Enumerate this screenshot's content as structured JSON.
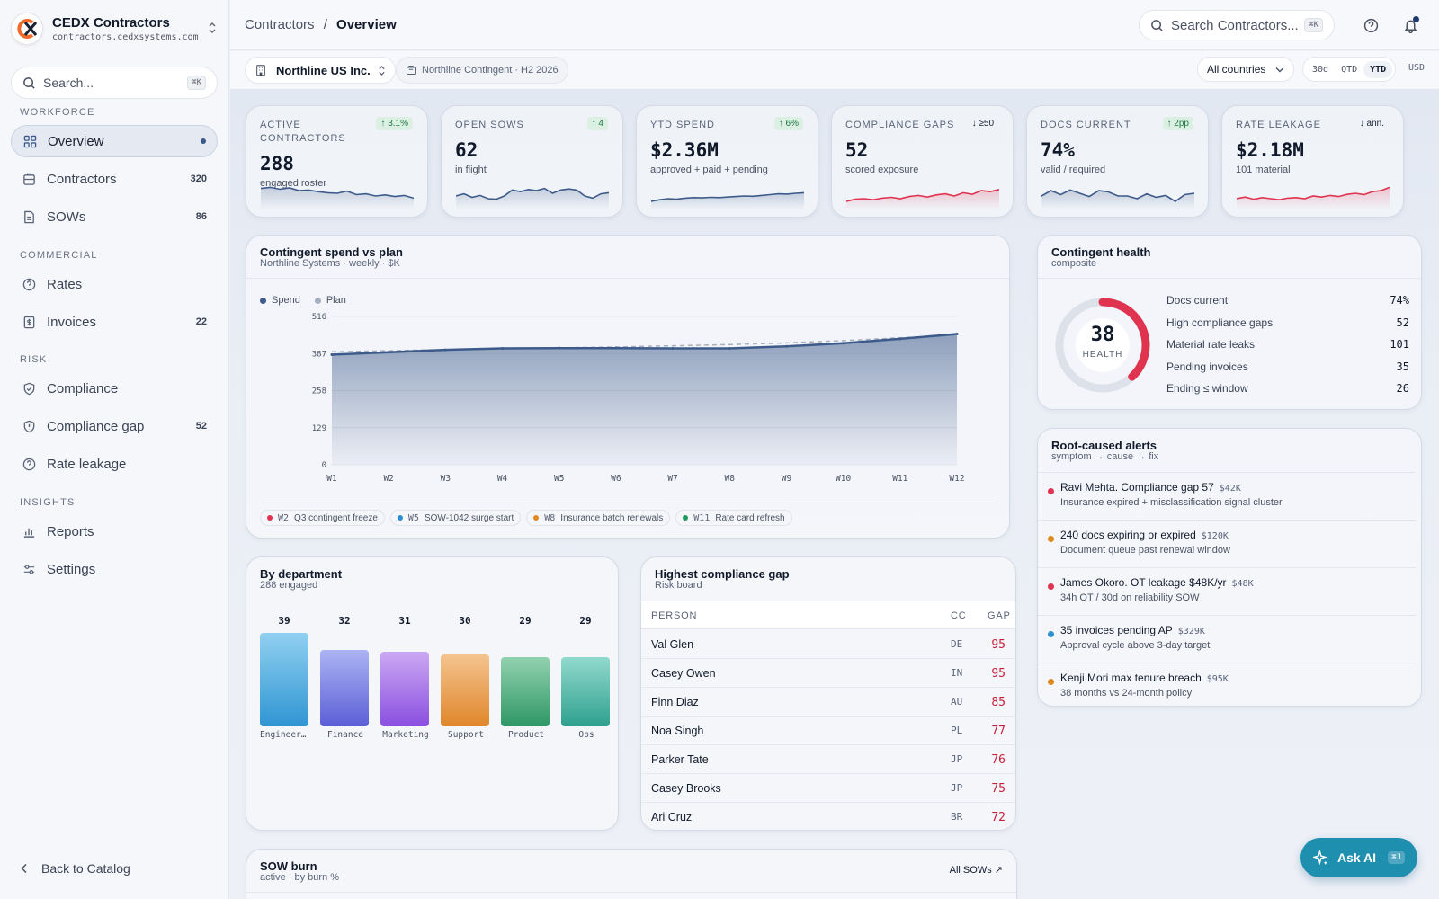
{
  "brand": {
    "name": "CEDX Contractors",
    "url": "contractors.cedxsystems.com"
  },
  "sidebar": {
    "search_placeholder": "Search...",
    "search_kbd": "⌘K",
    "sections": {
      "workforce": "WORKFORCE",
      "commercial": "COMMERCIAL",
      "risk": "RISK",
      "insights": "INSIGHTS"
    },
    "items": [
      {
        "label": "Overview",
        "count": "",
        "icon": "grid-icon"
      },
      {
        "label": "Contractors",
        "count": "320",
        "icon": "building-icon"
      },
      {
        "label": "SOWs",
        "count": "86",
        "icon": "document-icon"
      },
      {
        "label": "Rates",
        "count": "",
        "icon": "help-circle-icon"
      },
      {
        "label": "Invoices",
        "count": "22",
        "icon": "dollar-doc-icon"
      },
      {
        "label": "Compliance",
        "count": "",
        "icon": "shield-check-icon"
      },
      {
        "label": "Compliance gap",
        "count": "52",
        "icon": "shield-alert-icon"
      },
      {
        "label": "Rate leakage",
        "count": "",
        "icon": "help-circle-icon"
      },
      {
        "label": "Reports",
        "count": "",
        "icon": "bar-chart-icon"
      },
      {
        "label": "Settings",
        "count": "",
        "icon": "sliders-icon"
      }
    ],
    "back_label": "Back to Catalog"
  },
  "header": {
    "breadcrumb_root": "Contractors",
    "breadcrumb_sep": "/",
    "breadcrumb_current": "Overview",
    "search_placeholder": "Search Contractors...",
    "search_kbd": "⌘K"
  },
  "filters": {
    "org": "Northline US Inc.",
    "scope": "Northline Contingent · H2 2026",
    "country": "All countries",
    "periods": [
      "30d",
      "QTD",
      "YTD"
    ],
    "active_period": "YTD",
    "currency": "USD"
  },
  "kpis": [
    {
      "label": "ACTIVE CONTRACTORS",
      "delta": "↑ 3.1%",
      "direction": "up",
      "value": "288",
      "sub": "engaged roster",
      "spark": [
        0.78,
        0.82,
        0.75,
        0.8,
        0.7,
        0.72,
        0.66,
        0.62,
        0.6,
        0.68,
        0.55,
        0.58,
        0.5,
        0.54,
        0.48,
        0.52,
        0.42
      ],
      "color": "#3c5a8a"
    },
    {
      "label": "OPEN SOWS",
      "delta": "↑ 4",
      "direction": "up",
      "value": "62",
      "sub": "in flight",
      "spark": [
        0.5,
        0.58,
        0.45,
        0.52,
        0.4,
        0.38,
        0.5,
        0.72,
        0.66,
        0.74,
        0.7,
        0.78,
        0.6,
        0.72,
        0.76,
        0.72,
        0.5,
        0.42,
        0.58,
        0.62
      ],
      "color": "#3c5a8a"
    },
    {
      "label": "YTD SPEND",
      "delta": "↑ 6%",
      "direction": "up",
      "value": "$2.36M",
      "sub": "approved + paid + pending",
      "spark": [
        0.3,
        0.36,
        0.4,
        0.38,
        0.42,
        0.44,
        0.43,
        0.45,
        0.44,
        0.46,
        0.48,
        0.5,
        0.49,
        0.52,
        0.55,
        0.58,
        0.57,
        0.6,
        0.62
      ],
      "color": "#3c5a8a"
    },
    {
      "label": "COMPLIANCE GAPS",
      "delta": "↓ ≥50",
      "direction": "down",
      "value": "52",
      "sub": "scored exposure",
      "spark": [
        0.3,
        0.38,
        0.4,
        0.36,
        0.42,
        0.45,
        0.4,
        0.48,
        0.52,
        0.46,
        0.54,
        0.58,
        0.5,
        0.62,
        0.56,
        0.7,
        0.66,
        0.74
      ],
      "color": "#e0334f"
    },
    {
      "label": "DOCS CURRENT",
      "delta": "↑ 2pp",
      "direction": "up",
      "value": "74%",
      "sub": "valid / required",
      "spark": [
        0.5,
        0.7,
        0.55,
        0.72,
        0.6,
        0.48,
        0.7,
        0.65,
        0.5,
        0.5,
        0.4,
        0.58,
        0.45,
        0.52,
        0.3,
        0.55,
        0.6
      ],
      "color": "#3c5a8a"
    },
    {
      "label": "RATE LEAKAGE",
      "delta": "↓ ann.",
      "direction": "down",
      "value": "$2.18M",
      "sub": "101 material",
      "spark": [
        0.4,
        0.46,
        0.38,
        0.44,
        0.4,
        0.36,
        0.42,
        0.44,
        0.4,
        0.5,
        0.46,
        0.52,
        0.48,
        0.56,
        0.6,
        0.55,
        0.66,
        0.7,
        0.82
      ],
      "color": "#e0334f"
    }
  ],
  "spend_chart": {
    "title": "Contingent spend vs plan",
    "subtitle": "Northline Systems · weekly · $K",
    "legend": [
      {
        "name": "Spend",
        "color": "#3c5a8a"
      },
      {
        "name": "Plan",
        "color": "#a6afbd"
      }
    ],
    "annotations": [
      {
        "week": "W2",
        "text": "Q3 contingent freeze",
        "color": "#e0334f"
      },
      {
        "week": "W5",
        "text": "SOW-1042 surge start",
        "color": "#2b8fd0"
      },
      {
        "week": "W8",
        "text": "Insurance batch renewals",
        "color": "#e08a1e"
      },
      {
        "week": "W11",
        "text": "Rate card refresh",
        "color": "#1f9a5a"
      }
    ]
  },
  "chart_data": {
    "type": "area",
    "x": [
      "W1",
      "W2",
      "W3",
      "W4",
      "W5",
      "W6",
      "W7",
      "W8",
      "W9",
      "W10",
      "W11",
      "W12"
    ],
    "series": [
      {
        "name": "Spend",
        "values": [
          383,
          392,
          400,
          405,
          406,
          406,
          405,
          405,
          412,
          423,
          438,
          455
        ]
      },
      {
        "name": "Plan",
        "values": [
          393,
          397,
          401,
          404,
          407,
          410,
          414,
          418,
          424,
          432,
          442,
          452
        ]
      }
    ],
    "yticks": [
      "516",
      "387",
      "258",
      "129",
      "0"
    ],
    "ylim": [
      0,
      516
    ],
    "title": "Contingent spend vs plan",
    "subtitle": "Northline Systems · weekly · $K"
  },
  "health": {
    "title": "Contingent health",
    "subtitle": "composite",
    "score": "38",
    "score_label": "HEALTH",
    "score_value": 38,
    "rows": [
      {
        "label": "Docs current",
        "value": "74%"
      },
      {
        "label": "High compliance gaps",
        "value": "52"
      },
      {
        "label": "Material rate leaks",
        "value": "101"
      },
      {
        "label": "Pending invoices",
        "value": "35"
      },
      {
        "label": "Ending ≤ window",
        "value": "26"
      }
    ]
  },
  "alerts": {
    "title": "Root-caused alerts",
    "subtitle": "symptom → cause → fix",
    "items": [
      {
        "title": "Ravi Mehta. Compliance gap 57",
        "amount": "$42K",
        "detail": "Insurance expired + misclassification signal cluster",
        "color": "#e0334f"
      },
      {
        "title": "240 docs expiring or expired",
        "amount": "$120K",
        "detail": "Document queue past renewal window",
        "color": "#e08a1e"
      },
      {
        "title": "James Okoro. OT leakage $48K/yr",
        "amount": "$48K",
        "detail": "34h OT / 30d on reliability SOW",
        "color": "#e0334f"
      },
      {
        "title": "35 invoices pending AP",
        "amount": "$329K",
        "detail": "Approval cycle above 3-day target",
        "color": "#2b8fd0"
      },
      {
        "title": "Kenji Mori max tenure breach",
        "amount": "$95K",
        "detail": "38 months vs 24-month policy",
        "color": "#e08a1e"
      }
    ]
  },
  "departments": {
    "title": "By department",
    "subtitle": "288 engaged",
    "items": [
      {
        "name": "Engineeri…",
        "value": 39,
        "label": "39",
        "top": "#8fcff0",
        "bottom": "#2f95d2"
      },
      {
        "name": "Finance",
        "value": 32,
        "label": "32",
        "top": "#aab2f2",
        "bottom": "#5b5fd6"
      },
      {
        "name": "Marketing",
        "value": 31,
        "label": "31",
        "top": "#caa6f2",
        "bottom": "#8a4fe0"
      },
      {
        "name": "Support",
        "value": 30,
        "label": "30",
        "top": "#f4c28c",
        "bottom": "#e0862a"
      },
      {
        "name": "Product",
        "value": 29,
        "label": "29",
        "top": "#8fd0ad",
        "bottom": "#2f9766"
      },
      {
        "name": "Ops",
        "value": 29,
        "label": "29",
        "top": "#8fd8cc",
        "bottom": "#2fa08e"
      }
    ]
  },
  "gap_table": {
    "title": "Highest compliance gap",
    "subtitle": "Risk board",
    "headers": {
      "person": "PERSON",
      "cc": "CC",
      "gap": "GAP"
    },
    "rows": [
      {
        "person": "Val Glen",
        "cc": "DE",
        "gap": "95"
      },
      {
        "person": "Casey Owen",
        "cc": "IN",
        "gap": "95"
      },
      {
        "person": "Finn Diaz",
        "cc": "AU",
        "gap": "85"
      },
      {
        "person": "Noa Singh",
        "cc": "PL",
        "gap": "77"
      },
      {
        "person": "Parker Tate",
        "cc": "JP",
        "gap": "76"
      },
      {
        "person": "Casey Brooks",
        "cc": "JP",
        "gap": "75"
      },
      {
        "person": "Ari Cruz",
        "cc": "BR",
        "gap": "72"
      }
    ]
  },
  "sow_burn": {
    "title": "SOW burn",
    "subtitle": "active · by burn %",
    "link": "All SOWs ↗"
  },
  "ask_ai": {
    "label": "Ask AI",
    "kbd": "⌘J"
  }
}
